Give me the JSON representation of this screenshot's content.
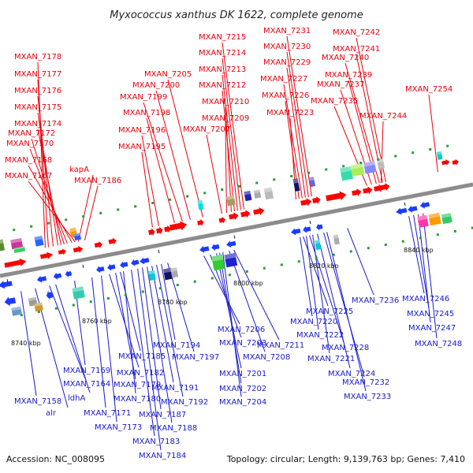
{
  "title": "Myxococcus xanthus DK 1622, complete genome",
  "footer": {
    "accession": "Accession: NC_008095",
    "summary": "Topology: circular; Length: 9,139,763 bp; Genes: 7,410"
  },
  "colors": {
    "top_label": "#e8000b",
    "bottom_label": "#1a1acc",
    "backbone": "#8c8c8c"
  },
  "ticks": [
    "8740 kbp",
    "8760 kbp",
    "8780 kbp",
    "8800 kbp",
    "8820 kbp",
    "8840 kbp"
  ],
  "top_labels": [
    "MXAN_7178",
    "MXAN_7177",
    "MXAN_7176",
    "MXAN_7175",
    "MXAN_7174",
    "MXAN_7172",
    "MXAN_7170",
    "MXAN_7168",
    "MXAN_7167",
    "kapA",
    "MXAN_7186",
    "MXAN_7205",
    "MXAN_7200",
    "MXAN_7199",
    "MXAN_7198",
    "MXAN_7196",
    "MXAN_7195",
    "MXAN_7215",
    "MXAN_7214",
    "MXAN_7213",
    "MXAN_7212",
    "MXAN_7210",
    "MXAN_7209",
    "MXAN_7207",
    "MXAN_7231",
    "MXAN_7230",
    "MXAN_7229",
    "MXAN_7227",
    "MXAN_7226",
    "MXAN_7223",
    "MXAN_7242",
    "MXAN_7241",
    "MXAN_7240",
    "MXAN_7239",
    "MXAN_7237",
    "MXAN_7235",
    "MXAN_7244",
    "MXAN_7254"
  ],
  "bottom_labels": [
    "MXAN_7158",
    "alr",
    "MXAN_7164",
    "ldhA",
    "MXAN_7169",
    "MXAN_7171",
    "MXAN_7173",
    "MXAN_7182",
    "MXAN_7179",
    "MXAN_7185",
    "MXAN_7180",
    "MXAN_7183",
    "MXAN_7184",
    "MXAN_7187",
    "MXAN_7188",
    "MXAN_7191",
    "MXAN_7192",
    "MXAN_7194",
    "MXAN_7197",
    "MXAN_7206",
    "MXAN_7203",
    "MXAN_7201",
    "MXAN_7202",
    "MXAN_7204",
    "MXAN_7208",
    "MXAN_7211",
    "MXAN_7225",
    "MXAN_7220",
    "MXAN_7222",
    "MXAN_7228",
    "MXAN_7221",
    "MXAN_7224",
    "MXAN_7232",
    "MXAN_7233",
    "MXAN_7236",
    "MXAN_7246",
    "MXAN_7245",
    "MXAN_7247",
    "MXAN_7248"
  ]
}
